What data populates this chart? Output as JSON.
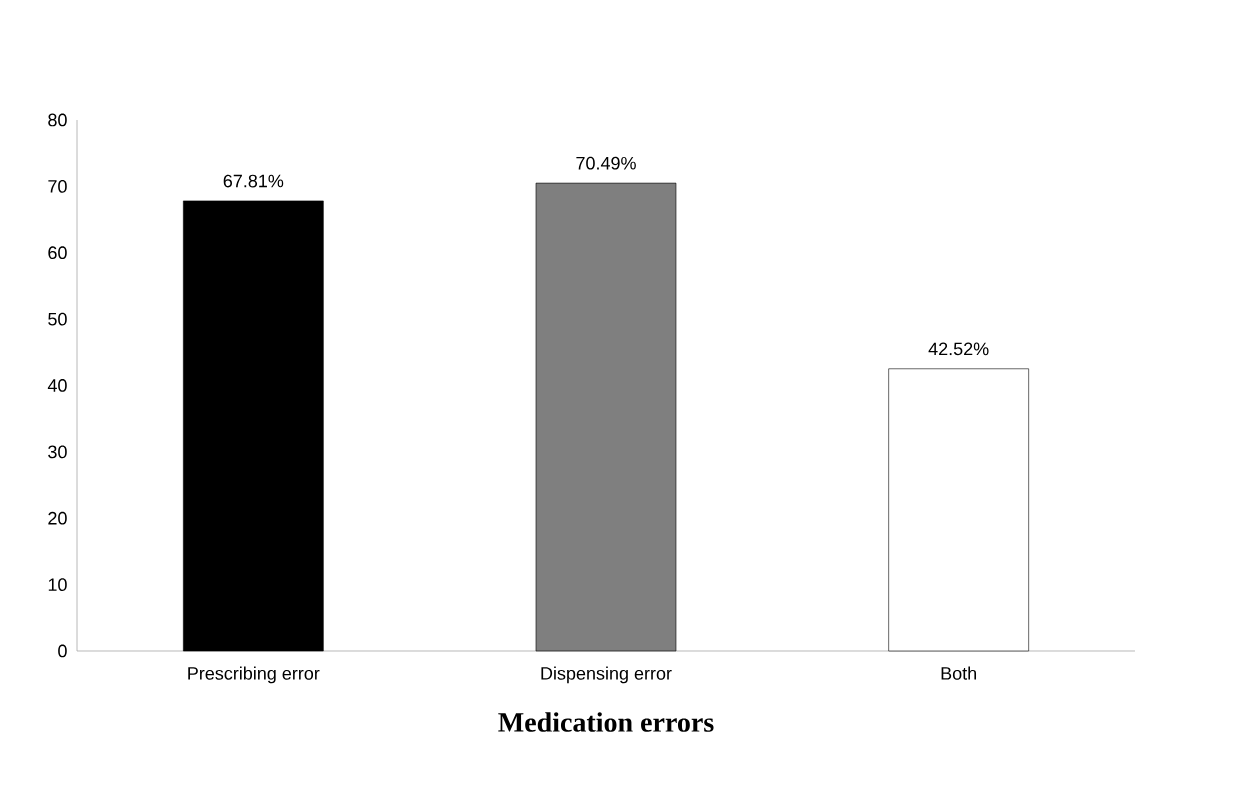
{
  "chart_data": {
    "type": "bar",
    "xlabel": "Medication errors",
    "categories": [
      "Prescribing error",
      "Dispensing error",
      "Both"
    ],
    "values": [
      67.81,
      70.49,
      42.52
    ],
    "value_labels": [
      "67.81%",
      "70.49%",
      "42.52%"
    ],
    "colors": [
      "#000000",
      "#7f7f7f",
      "#ffffff"
    ],
    "ylim": [
      0,
      80
    ],
    "yticks": [
      0,
      10,
      20,
      30,
      40,
      50,
      60,
      70,
      80
    ],
    "grid": false
  }
}
